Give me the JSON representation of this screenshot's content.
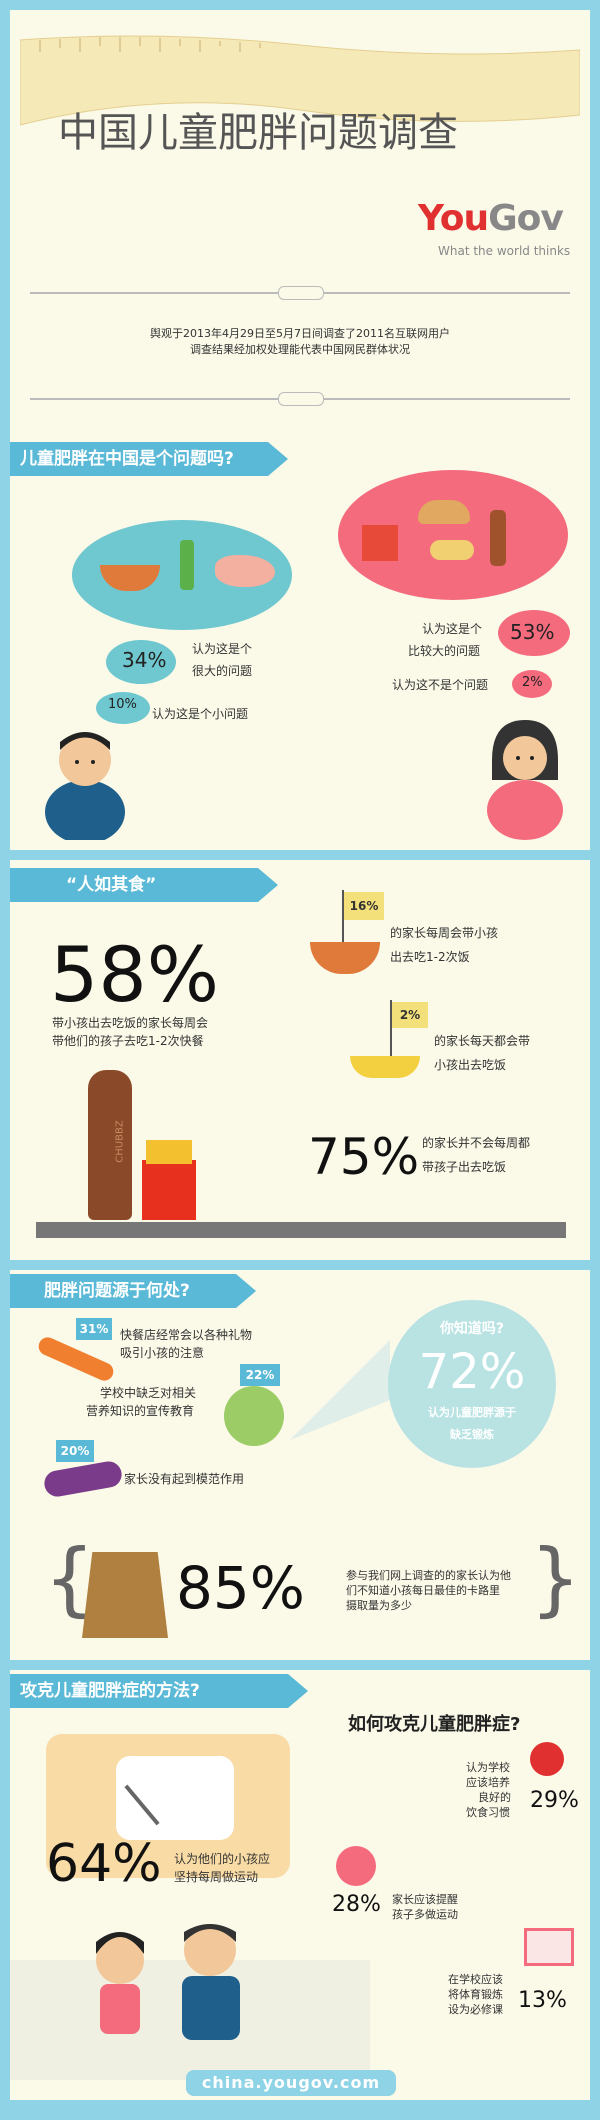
{
  "header": {
    "title": "中国儿童肥胖问题调查",
    "brand_you": "You",
    "brand_gov": "Gov",
    "tagline": "What the world thinks",
    "intro_line1": "舆观于2013年4月29日至5月7日间调查了2011名互联网用户",
    "intro_line2": "调查结果经加权处理能代表中国网民群体状况"
  },
  "section1": {
    "ribbon": "儿童肥胖在中国是个问题吗?",
    "left_big_pct": "34%",
    "left_big_text1": "认为这是个",
    "left_big_text2": "很大的问题",
    "left_small_pct": "10%",
    "left_small_text": "认为这是个小问题",
    "right_big_text1": "认为这是个",
    "right_big_text2": "比较大的问题",
    "right_big_pct": "53%",
    "right_small_text": "认为这不是个问题",
    "right_small_pct": "2%"
  },
  "section2": {
    "ribbon": "“人如其食”",
    "big_pct": "58%",
    "big_text1": "带小孩出去吃饭的家长每周会",
    "big_text2": "带他们的孩子去吃1-2次快餐",
    "flag1_pct": "16%",
    "flag1_text1": "的家长每周会带小孩",
    "flag1_text2": "出去吃1-2次饭",
    "flag2_pct": "2%",
    "flag2_text1": "的家长每天都会带",
    "flag2_text2": "小孩出去吃饭",
    "pct75": "75%",
    "pct75_text1": "的家长并不会每周都",
    "pct75_text2": "带孩子出去吃饭",
    "bottle_label": "CHUBBZ"
  },
  "section3": {
    "ribbon": "肥胖问题源于何处?",
    "item1_pct": "31%",
    "item1_text1": "快餐店经常会以各种礼物",
    "item1_text2": "吸引小孩的注意",
    "item2_pct": "22%",
    "item2_text1": "学校中缺乏对相关",
    "item2_text2": "营养知识的宣传教育",
    "item3_pct": "20%",
    "item3_text": "家长没有起到模范作用",
    "know_title": "你知道吗?",
    "know_pct": "72%",
    "know_text1": "认为儿童肥胖源于",
    "know_text2": "缺乏锻炼",
    "pct85": "85%",
    "pct85_text1": "参与我们网上调查的的家长认为他",
    "pct85_text2": "们不知道小孩每日最佳的卡路里",
    "pct85_text3": "摄取量为多少"
  },
  "section4": {
    "ribbon": "攻克儿童肥胖症的方法?",
    "title": "如何攻克儿童肥胖症?",
    "pct64": "64%",
    "pct64_text1": "认为他们的小孩应",
    "pct64_text2": "坚持每周做运动",
    "r1_text1": "认为学校",
    "r1_text2": "应该培养",
    "r1_text3": "良好的",
    "r1_text4": "饮食习惯",
    "r1_pct": "29%",
    "r2_pct": "28%",
    "r2_text1": "家长应该提醒",
    "r2_text2": "孩子多做运动",
    "r3_text1": "在学校应该",
    "r3_text2": "将体育锻炼",
    "r3_text3": "设为必修课",
    "r3_pct": "13%"
  },
  "footer": {
    "url": "china.yougov.com"
  },
  "colors": {
    "ribbon": "#5ab9d6",
    "pink": "#f46b7e",
    "teal": "#6fc7cf",
    "yellow": "#f3e07a",
    "red": "#e03030"
  }
}
